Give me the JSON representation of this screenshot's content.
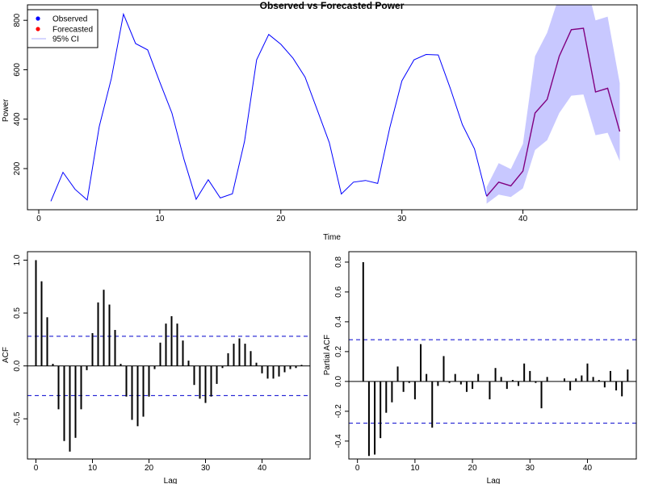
{
  "colors": {
    "observed": "#0000ff",
    "forecast": "#800080",
    "ci_fill": "#c8c8ff",
    "ci_dash": "#0000cd",
    "stem": "#000000"
  },
  "chart_data": [
    {
      "type": "line",
      "title": "Observed vs Forecasted Power",
      "xlabel": "Time",
      "ylabel": "Power",
      "xlim": [
        0,
        48.5
      ],
      "ylim": [
        40,
        830
      ],
      "xticks": [
        0,
        10,
        20,
        30,
        40
      ],
      "yticks": [
        200,
        400,
        600,
        800
      ],
      "legend": {
        "position": "top-left",
        "entries": [
          "Observed",
          "Forecasted",
          "95% CI"
        ]
      },
      "series": [
        {
          "name": "Observed",
          "x": [
            1,
            2,
            3,
            4,
            5,
            6,
            7,
            8,
            9,
            10,
            11,
            12,
            13,
            14,
            15,
            16,
            17,
            18,
            19,
            20,
            21,
            22,
            23,
            24,
            25,
            26,
            27,
            28,
            29,
            30,
            31,
            32,
            33,
            34,
            35,
            36,
            37
          ],
          "y": [
            68,
            185,
            116,
            73,
            370,
            565,
            825,
            706,
            680,
            550,
            425,
            237,
            76,
            155,
            81,
            98,
            310,
            640,
            743,
            703,
            647,
            570,
            438,
            305,
            97,
            145,
            152,
            140,
            365,
            555,
            640,
            662,
            660,
            525,
            378,
            280,
            88
          ]
        },
        {
          "name": "Forecasted",
          "x": [
            37,
            38,
            39,
            40,
            41,
            42,
            43,
            44,
            45,
            46,
            47,
            48
          ],
          "y": [
            88,
            145,
            130,
            190,
            425,
            480,
            655,
            762,
            768,
            510,
            525,
            350
          ]
        },
        {
          "name": "95% CI",
          "x": [
            37,
            38,
            39,
            40,
            41,
            42,
            43,
            44,
            45,
            46,
            47,
            48
          ],
          "lower": [
            58,
            95,
            85,
            120,
            275,
            315,
            425,
            495,
            500,
            335,
            345,
            230
          ],
          "upper": [
            125,
            222,
            198,
            300,
            655,
            750,
            900,
            1000,
            1000,
            800,
            815,
            545
          ]
        }
      ]
    },
    {
      "type": "bar",
      "title": "",
      "xlabel": "Lag",
      "ylabel": "ACF",
      "xlim": [
        -1.5,
        48.5
      ],
      "ylim": [
        -0.88,
        1.08
      ],
      "xticks": [
        0,
        10,
        20,
        30,
        40
      ],
      "yticks": [
        -0.5,
        0.0,
        0.5,
        1.0
      ],
      "ci": 0.28,
      "lags": [
        0,
        1,
        2,
        3,
        4,
        5,
        6,
        7,
        8,
        9,
        10,
        11,
        12,
        13,
        14,
        15,
        16,
        17,
        18,
        19,
        20,
        21,
        22,
        23,
        24,
        25,
        26,
        27,
        28,
        29,
        30,
        31,
        32,
        33,
        34,
        35,
        36,
        37,
        38,
        39,
        40,
        41,
        42,
        43,
        44,
        45,
        46,
        47
      ],
      "values": [
        1.0,
        0.8,
        0.46,
        0.02,
        -0.41,
        -0.71,
        -0.81,
        -0.68,
        -0.41,
        -0.04,
        0.31,
        0.6,
        0.72,
        0.58,
        0.34,
        0.02,
        -0.29,
        -0.51,
        -0.57,
        -0.48,
        -0.29,
        -0.03,
        0.22,
        0.4,
        0.47,
        0.4,
        0.24,
        0.05,
        -0.18,
        -0.31,
        -0.35,
        -0.29,
        -0.17,
        -0.02,
        0.12,
        0.21,
        0.26,
        0.21,
        0.14,
        0.03,
        -0.07,
        -0.12,
        -0.12,
        -0.1,
        -0.06,
        -0.03,
        -0.02,
        0.01
      ]
    },
    {
      "type": "bar",
      "title": "",
      "xlabel": "Lag",
      "ylabel": "Partial ACF",
      "xlim": [
        -1.5,
        48.5
      ],
      "ylim": [
        -0.52,
        0.87
      ],
      "xticks": [
        0,
        10,
        20,
        30,
        40
      ],
      "yticks": [
        -0.4,
        -0.2,
        0.0,
        0.2,
        0.4,
        0.6,
        0.8
      ],
      "ci": 0.28,
      "lags": [
        1,
        2,
        3,
        4,
        5,
        6,
        7,
        8,
        9,
        10,
        11,
        12,
        13,
        14,
        15,
        16,
        17,
        18,
        19,
        20,
        21,
        22,
        23,
        24,
        25,
        26,
        27,
        28,
        29,
        30,
        31,
        32,
        33,
        34,
        35,
        36,
        37,
        38,
        39,
        40,
        41,
        42,
        43,
        44,
        45,
        46,
        47
      ],
      "values": [
        0.8,
        -0.5,
        -0.49,
        -0.38,
        -0.21,
        -0.14,
        0.1,
        -0.07,
        -0.01,
        -0.12,
        0.25,
        0.05,
        -0.31,
        -0.03,
        0.17,
        -0.01,
        0.05,
        -0.02,
        -0.07,
        -0.05,
        0.05,
        0.0,
        -0.12,
        0.09,
        0.03,
        -0.05,
        0.01,
        -0.03,
        0.12,
        0.07,
        -0.01,
        -0.18,
        0.03,
        0.0,
        0.0,
        0.02,
        -0.06,
        0.02,
        0.04,
        0.12,
        0.03,
        0.01,
        -0.04,
        0.07,
        -0.06,
        -0.1,
        0.08
      ]
    }
  ]
}
